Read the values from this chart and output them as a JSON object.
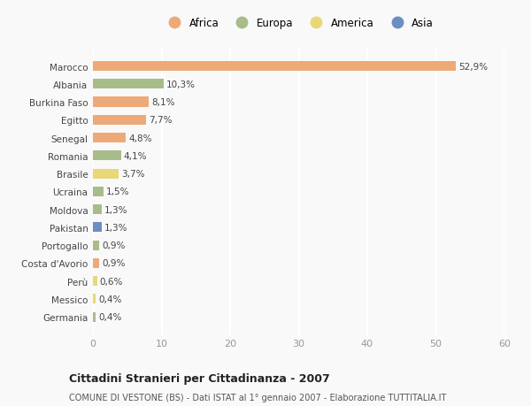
{
  "countries": [
    "Marocco",
    "Albania",
    "Burkina Faso",
    "Egitto",
    "Senegal",
    "Romania",
    "Brasile",
    "Ucraina",
    "Moldova",
    "Pakistan",
    "Portogallo",
    "Costa d'Avorio",
    "Perù",
    "Messico",
    "Germania"
  ],
  "values": [
    52.9,
    10.3,
    8.1,
    7.7,
    4.8,
    4.1,
    3.7,
    1.5,
    1.3,
    1.3,
    0.9,
    0.9,
    0.6,
    0.4,
    0.4
  ],
  "labels": [
    "52,9%",
    "10,3%",
    "8,1%",
    "7,7%",
    "4,8%",
    "4,1%",
    "3,7%",
    "1,5%",
    "1,3%",
    "1,3%",
    "0,9%",
    "0,9%",
    "0,6%",
    "0,4%",
    "0,4%"
  ],
  "continents": [
    "Africa",
    "Europa",
    "Africa",
    "Africa",
    "Africa",
    "Europa",
    "America",
    "Europa",
    "Europa",
    "Asia",
    "Europa",
    "Africa",
    "America",
    "America",
    "Europa"
  ],
  "continent_colors": {
    "Africa": "#EDAA78",
    "Europa": "#A8BC8A",
    "America": "#E8D878",
    "Asia": "#6B8FC0"
  },
  "legend_items": [
    "Africa",
    "Europa",
    "America",
    "Asia"
  ],
  "legend_colors": [
    "#EDAA78",
    "#A8BC8A",
    "#E8D878",
    "#6B8FC0"
  ],
  "xlim": [
    0,
    60
  ],
  "xticks": [
    0,
    10,
    20,
    30,
    40,
    50,
    60
  ],
  "title": "Cittadini Stranieri per Cittadinanza - 2007",
  "subtitle": "COMUNE DI VESTONE (BS) - Dati ISTAT al 1° gennaio 2007 - Elaborazione TUTTITALIA.IT",
  "bg_color": "#f9f9f9",
  "grid_color": "#ffffff",
  "bar_height": 0.55
}
